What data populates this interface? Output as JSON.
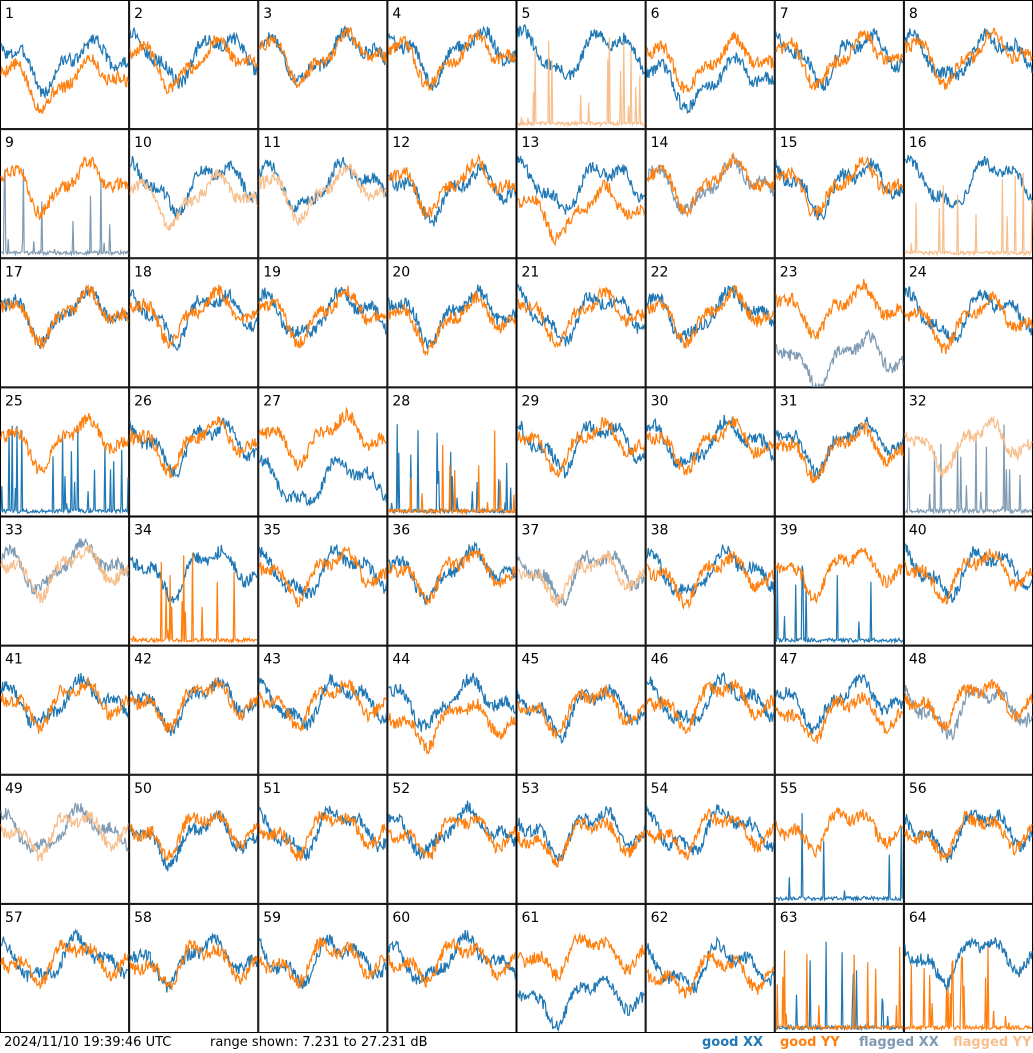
{
  "colors": {
    "good_xx": "#1f77b4",
    "good_yy": "#ff7f0e",
    "flagged_xx": "#7f9bb3",
    "flagged_yy": "#f8bf8c"
  },
  "footer": {
    "timestamp": "2024/11/10 19:39:46 UTC",
    "range_text": "range shown: 7.231 to 27.231 dB",
    "legend_good_xx": "good XX",
    "legend_good_yy": "good YY",
    "legend_flagged_xx": "flagged XX",
    "legend_flagged_yy": "flagged YY"
  },
  "chart_data": {
    "type": "line",
    "title": "",
    "ylim": [
      7.231,
      27.231
    ],
    "y_unit": "dB",
    "grid_rows": 8,
    "grid_cols": 8,
    "series_types": [
      "XX",
      "YY"
    ],
    "panels": [
      {
        "label": "1",
        "xx": "good",
        "yy": "good",
        "xx_level": 0.55,
        "yy_level": 0.4
      },
      {
        "label": "2",
        "xx": "good",
        "yy": "good",
        "xx_level": 0.6,
        "yy_level": 0.55
      },
      {
        "label": "3",
        "xx": "good",
        "yy": "good",
        "xx_level": 0.6,
        "yy_level": 0.6
      },
      {
        "label": "4",
        "xx": "good",
        "yy": "good",
        "xx_level": 0.62,
        "yy_level": 0.58
      },
      {
        "label": "5",
        "xx": "good",
        "yy": "flagged",
        "xx_level": 0.62,
        "yy_level": 0.03
      },
      {
        "label": "6",
        "xx": "good",
        "yy": "good",
        "xx_level": 0.4,
        "yy_level": 0.55
      },
      {
        "label": "7",
        "xx": "good",
        "yy": "good",
        "xx_level": 0.6,
        "yy_level": 0.58
      },
      {
        "label": "8",
        "xx": "good",
        "yy": "good",
        "xx_level": 0.6,
        "yy_level": 0.6
      },
      {
        "label": "9",
        "xx": "flagged",
        "yy": "good",
        "xx_level": 0.1,
        "yy_level": 0.6
      },
      {
        "label": "10",
        "xx": "good",
        "yy": "flagged",
        "xx_level": 0.6,
        "yy_level": 0.5
      },
      {
        "label": "11",
        "xx": "good",
        "yy": "flagged",
        "xx_level": 0.6,
        "yy_level": 0.55
      },
      {
        "label": "12",
        "xx": "good",
        "yy": "good",
        "xx_level": 0.55,
        "yy_level": 0.6
      },
      {
        "label": "13",
        "xx": "good",
        "yy": "good",
        "xx_level": 0.6,
        "yy_level": 0.4
      },
      {
        "label": "14",
        "xx": "flagged",
        "yy": "good",
        "xx_level": 0.6,
        "yy_level": 0.62
      },
      {
        "label": "15",
        "xx": "good",
        "yy": "good",
        "xx_level": 0.6,
        "yy_level": 0.6
      },
      {
        "label": "16",
        "xx": "good",
        "yy": "flagged",
        "xx_level": 0.62,
        "yy_level": 0.03
      },
      {
        "label": "17",
        "xx": "good",
        "yy": "good",
        "xx_level": 0.6,
        "yy_level": 0.6
      },
      {
        "label": "18",
        "xx": "good",
        "yy": "good",
        "xx_level": 0.6,
        "yy_level": 0.6
      },
      {
        "label": "19",
        "xx": "good",
        "yy": "good",
        "xx_level": 0.6,
        "yy_level": 0.6
      },
      {
        "label": "20",
        "xx": "good",
        "yy": "good",
        "xx_level": 0.6,
        "yy_level": 0.55
      },
      {
        "label": "21",
        "xx": "good",
        "yy": "good",
        "xx_level": 0.6,
        "yy_level": 0.6
      },
      {
        "label": "22",
        "xx": "good",
        "yy": "good",
        "xx_level": 0.6,
        "yy_level": 0.6
      },
      {
        "label": "23",
        "xx": "flagged",
        "yy": "good",
        "xx_level": 0.25,
        "yy_level": 0.65
      },
      {
        "label": "24",
        "xx": "good",
        "yy": "good",
        "xx_level": 0.6,
        "yy_level": 0.55
      },
      {
        "label": "25",
        "xx": "good",
        "yy": "good",
        "xx_level": 0.03,
        "yy_level": 0.62
      },
      {
        "label": "26",
        "xx": "good",
        "yy": "good",
        "xx_level": 0.6,
        "yy_level": 0.6
      },
      {
        "label": "27",
        "xx": "good",
        "yy": "good",
        "xx_level": 0.3,
        "yy_level": 0.65
      },
      {
        "label": "28",
        "xx": "good",
        "yy": "good",
        "xx_level": 0.02,
        "yy_level": 0.05
      },
      {
        "label": "29",
        "xx": "good",
        "yy": "good",
        "xx_level": 0.6,
        "yy_level": 0.6
      },
      {
        "label": "30",
        "xx": "good",
        "yy": "good",
        "xx_level": 0.6,
        "yy_level": 0.6
      },
      {
        "label": "31",
        "xx": "good",
        "yy": "good",
        "xx_level": 0.6,
        "yy_level": 0.55
      },
      {
        "label": "32",
        "xx": "flagged",
        "yy": "flagged",
        "xx_level": 0.1,
        "yy_level": 0.6
      },
      {
        "label": "33",
        "xx": "flagged",
        "yy": "flagged",
        "xx_level": 0.65,
        "yy_level": 0.62
      },
      {
        "label": "34",
        "xx": "good",
        "yy": "good",
        "xx_level": 0.62,
        "yy_level": 0.05
      },
      {
        "label": "35",
        "xx": "good",
        "yy": "good",
        "xx_level": 0.6,
        "yy_level": 0.6
      },
      {
        "label": "36",
        "xx": "good",
        "yy": "good",
        "xx_level": 0.6,
        "yy_level": 0.6
      },
      {
        "label": "37",
        "xx": "flagged",
        "yy": "flagged",
        "xx_level": 0.6,
        "yy_level": 0.58
      },
      {
        "label": "38",
        "xx": "good",
        "yy": "good",
        "xx_level": 0.6,
        "yy_level": 0.58
      },
      {
        "label": "39",
        "xx": "good",
        "yy": "good",
        "xx_level": 0.05,
        "yy_level": 0.62
      },
      {
        "label": "40",
        "xx": "good",
        "yy": "good",
        "xx_level": 0.62,
        "yy_level": 0.6
      },
      {
        "label": "41",
        "xx": "good",
        "yy": "good",
        "xx_level": 0.6,
        "yy_level": 0.6
      },
      {
        "label": "42",
        "xx": "good",
        "yy": "good",
        "xx_level": 0.6,
        "yy_level": 0.6
      },
      {
        "label": "43",
        "xx": "good",
        "yy": "good",
        "xx_level": 0.6,
        "yy_level": 0.6
      },
      {
        "label": "44",
        "xx": "good",
        "yy": "good",
        "xx_level": 0.6,
        "yy_level": 0.45
      },
      {
        "label": "45",
        "xx": "good",
        "yy": "good",
        "xx_level": 0.55,
        "yy_level": 0.55
      },
      {
        "label": "46",
        "xx": "good",
        "yy": "good",
        "xx_level": 0.6,
        "yy_level": 0.6
      },
      {
        "label": "47",
        "xx": "good",
        "yy": "good",
        "xx_level": 0.6,
        "yy_level": 0.5
      },
      {
        "label": "48",
        "xx": "flagged",
        "yy": "good",
        "xx_level": 0.55,
        "yy_level": 0.6
      },
      {
        "label": "49",
        "xx": "flagged",
        "yy": "flagged",
        "xx_level": 0.6,
        "yy_level": 0.6
      },
      {
        "label": "50",
        "xx": "good",
        "yy": "good",
        "xx_level": 0.55,
        "yy_level": 0.6
      },
      {
        "label": "51",
        "xx": "good",
        "yy": "good",
        "xx_level": 0.6,
        "yy_level": 0.6
      },
      {
        "label": "52",
        "xx": "good",
        "yy": "good",
        "xx_level": 0.6,
        "yy_level": 0.58
      },
      {
        "label": "53",
        "xx": "good",
        "yy": "good",
        "xx_level": 0.6,
        "yy_level": 0.55
      },
      {
        "label": "54",
        "xx": "good",
        "yy": "good",
        "xx_level": 0.6,
        "yy_level": 0.6
      },
      {
        "label": "55",
        "xx": "good",
        "yy": "good",
        "xx_level": 0.05,
        "yy_level": 0.62
      },
      {
        "label": "56",
        "xx": "good",
        "yy": "good",
        "xx_level": 0.6,
        "yy_level": 0.58
      },
      {
        "label": "57",
        "xx": "good",
        "yy": "good",
        "xx_level": 0.6,
        "yy_level": 0.6
      },
      {
        "label": "58",
        "xx": "good",
        "yy": "good",
        "xx_level": 0.6,
        "yy_level": 0.58
      },
      {
        "label": "59",
        "xx": "good",
        "yy": "good",
        "xx_level": 0.6,
        "yy_level": 0.6
      },
      {
        "label": "60",
        "xx": "good",
        "yy": "good",
        "xx_level": 0.6,
        "yy_level": 0.6
      },
      {
        "label": "61",
        "xx": "good",
        "yy": "good",
        "xx_level": 0.3,
        "yy_level": 0.65
      },
      {
        "label": "62",
        "xx": "good",
        "yy": "good",
        "xx_level": 0.55,
        "yy_level": 0.5
      },
      {
        "label": "63",
        "xx": "good",
        "yy": "good",
        "xx_level": 0.02,
        "yy_level": 0.05
      },
      {
        "label": "64",
        "xx": "good",
        "yy": "good",
        "xx_level": 0.62,
        "yy_level": 0.03
      }
    ]
  }
}
